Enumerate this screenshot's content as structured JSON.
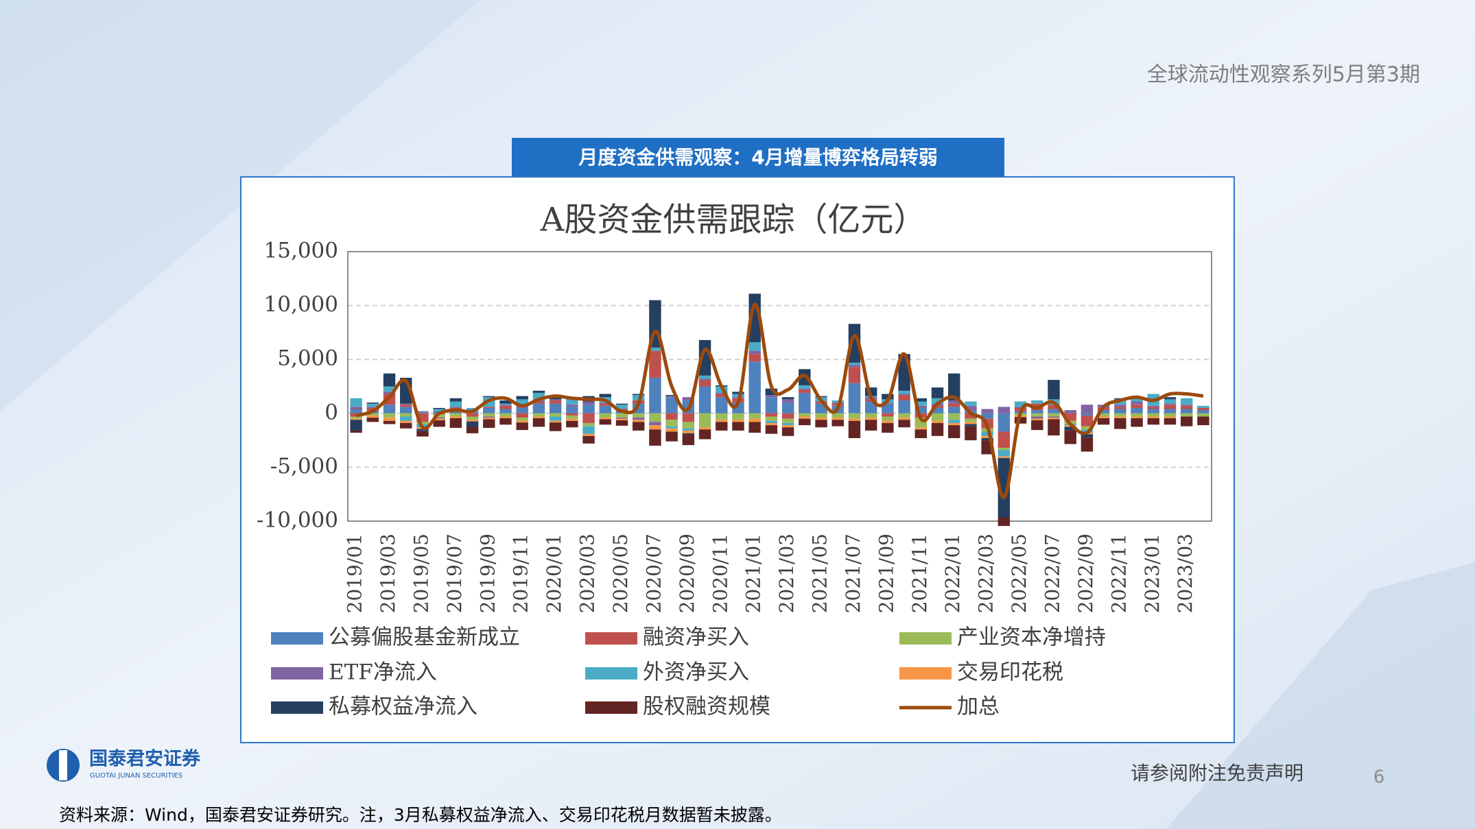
{
  "header": {
    "series_title": "全球流动性观察系列5月第3期"
  },
  "title_box": {
    "text": "月度资金供需观察：4月增量博弈格局转弱"
  },
  "chart_data": {
    "type": "bar",
    "stacked": true,
    "title": "A股资金供需跟踪（亿元）",
    "categories": [
      "2019/01",
      null,
      "2019/03",
      null,
      "2019/05",
      null,
      "2019/07",
      null,
      "2019/09",
      null,
      "2019/11",
      null,
      "2020/01",
      null,
      "2020/03",
      null,
      "2020/05",
      null,
      "2020/07",
      null,
      "2020/09",
      null,
      "2020/11",
      null,
      "2021/01",
      null,
      "2021/03",
      null,
      "2021/05",
      null,
      "2021/07",
      null,
      "2021/09",
      null,
      "2021/11",
      null,
      "2022/01",
      null,
      "2022/03",
      null,
      "2022/05",
      null,
      "2022/07",
      null,
      "2022/09",
      null,
      "2022/11",
      null,
      "2023/01",
      null,
      "2023/03",
      null
    ],
    "ylim": [
      -10000,
      15000
    ],
    "yticks": [
      {
        "value": -10000,
        "label": "-10,000"
      },
      {
        "value": -5000,
        "label": "-5,000"
      },
      0,
      {
        "value": 5000,
        "label": "5,000"
      },
      {
        "value": 10000,
        "label": "10,000"
      },
      {
        "value": 15000,
        "label": "15,000"
      }
    ],
    "grid": true,
    "series": [
      {
        "name": "公募偏股基金新成立",
        "color": "#4f81bd",
        "values": [
          300,
          200,
          800,
          600,
          100,
          200,
          200,
          100,
          500,
          400,
          500,
          900,
          900,
          600,
          800,
          700,
          300,
          900,
          3300,
          1500,
          1200,
          2500,
          1500,
          1000,
          4800,
          1500,
          1000,
          1900,
          900,
          700,
          2800,
          1100,
          900,
          1200,
          500,
          500,
          600,
          200,
          -500,
          -1700,
          200,
          300,
          400,
          0,
          -200,
          300,
          400,
          500,
          400,
          400,
          400,
          300
        ]
      },
      {
        "name": "融资净买入",
        "color": "#c0504d",
        "values": [
          -300,
          300,
          1000,
          200,
          -800,
          -100,
          300,
          -300,
          100,
          300,
          -400,
          200,
          300,
          -200,
          -900,
          200,
          100,
          300,
          2500,
          -600,
          -800,
          600,
          300,
          400,
          700,
          -300,
          -500,
          300,
          200,
          200,
          1500,
          200,
          -300,
          500,
          -400,
          200,
          300,
          -500,
          -900,
          -1500,
          300,
          600,
          400,
          -700,
          -1000,
          200,
          200,
          300,
          200,
          400,
          300,
          200
        ]
      },
      {
        "name": "产业资本净增持",
        "color": "#9bbb59",
        "values": [
          -200,
          -200,
          -400,
          -300,
          -200,
          -300,
          -300,
          -300,
          -300,
          -300,
          -300,
          -300,
          -300,
          -300,
          -300,
          -400,
          -400,
          -400,
          -800,
          -600,
          -600,
          -1300,
          -600,
          -600,
          -500,
          -400,
          -400,
          -300,
          -400,
          -400,
          -500,
          -400,
          -400,
          -400,
          -900,
          -700,
          -600,
          -300,
          -300,
          -200,
          -200,
          -300,
          -300,
          -300,
          -300,
          -300,
          -300,
          -300,
          -300,
          -300,
          -300,
          -300
        ]
      },
      {
        "name": "ETF净流入",
        "color": "#8064a2",
        "values": [
          300,
          100,
          200,
          100,
          100,
          -100,
          100,
          100,
          -100,
          100,
          200,
          100,
          100,
          200,
          300,
          100,
          -100,
          -200,
          -300,
          100,
          300,
          100,
          100,
          100,
          300,
          200,
          300,
          100,
          0,
          100,
          200,
          200,
          100,
          100,
          200,
          200,
          300,
          500,
          400,
          600,
          100,
          -200,
          -100,
          300,
          800,
          300,
          200,
          300,
          100,
          100,
          100,
          0
        ]
      },
      {
        "name": "外资净买入",
        "color": "#4bacc6",
        "values": [
          800,
          300,
          500,
          -400,
          -300,
          200,
          500,
          300,
          900,
          100,
          600,
          700,
          -400,
          500,
          -700,
          500,
          400,
          500,
          300,
          -200,
          -200,
          300,
          600,
          300,
          800,
          -200,
          -200,
          300,
          400,
          200,
          200,
          100,
          300,
          300,
          400,
          500,
          -300,
          400,
          -400,
          -600,
          500,
          300,
          500,
          -100,
          -300,
          0,
          500,
          300,
          1100,
          400,
          600,
          200
        ]
      },
      {
        "name": "交易印花税",
        "color": "#f79646",
        "values": [
          -100,
          -200,
          -300,
          -200,
          -150,
          -150,
          -150,
          -150,
          -150,
          -150,
          -150,
          -150,
          -150,
          -200,
          -200,
          -150,
          -150,
          -200,
          -400,
          -300,
          -250,
          -200,
          -200,
          -200,
          -300,
          -200,
          -200,
          -200,
          -200,
          -200,
          -200,
          -200,
          -200,
          -200,
          -200,
          -200,
          -200,
          -200,
          -200,
          -150,
          -150,
          -150,
          -150,
          -150,
          -150,
          -150,
          -150,
          -150,
          -150,
          -150,
          null,
          null
        ]
      },
      {
        "name": "私募权益净流入",
        "color": "#243f60",
        "values": [
          -1000,
          100,
          1200,
          2400,
          -200,
          100,
          300,
          -500,
          100,
          300,
          300,
          200,
          300,
          200,
          500,
          300,
          100,
          100,
          4400,
          100,
          -100,
          3300,
          100,
          200,
          4500,
          600,
          200,
          1500,
          100,
          0,
          3600,
          800,
          500,
          3400,
          300,
          1000,
          2500,
          -200,
          -200,
          -5500,
          0,
          0,
          1800,
          -300,
          -300,
          0,
          100,
          0,
          0,
          200,
          null,
          null
        ]
      },
      {
        "name": "股权融资规模",
        "color": "#632523",
        "values": [
          -200,
          -400,
          -300,
          -500,
          -500,
          -600,
          -900,
          -600,
          -800,
          -600,
          -700,
          -800,
          -800,
          -600,
          -700,
          -500,
          -500,
          -800,
          -1500,
          -900,
          -1000,
          -900,
          -800,
          -800,
          -1000,
          -800,
          -800,
          -600,
          -700,
          -600,
          -1600,
          -1000,
          -900,
          -700,
          -800,
          -1200,
          -1200,
          -1300,
          -1300,
          -800,
          -600,
          -900,
          -1500,
          -1300,
          -1300,
          -600,
          -1000,
          -800,
          -600,
          -600,
          -900,
          -800
        ]
      },
      {
        "name": "加总",
        "color": "#9c4a0c",
        "type": "line",
        "values": [
          -200,
          200,
          1500,
          3000,
          -1300,
          0,
          300,
          200,
          1200,
          1400,
          700,
          1300,
          1600,
          1400,
          1300,
          1200,
          200,
          900,
          7600,
          2500,
          400,
          5900,
          2500,
          1000,
          10100,
          2500,
          2200,
          3500,
          1200,
          500,
          7200,
          1500,
          1200,
          5500,
          -500,
          900,
          1500,
          0,
          -1200,
          -7800,
          100,
          500,
          1000,
          -1000,
          -1800,
          600,
          1200,
          1500,
          1200,
          1800,
          1800,
          1600
        ]
      }
    ]
  },
  "logo": {
    "name": "国泰君安证券",
    "name_en": "GUOTAI JUNAN SECURITIES"
  },
  "footer": {
    "disclaimer": "请参阅附注免责声明",
    "page": "6"
  },
  "source": "资料来源：Wind，国泰君安证券研究。注，3月私募权益净流入、交易印花税月数据暂未披露。"
}
